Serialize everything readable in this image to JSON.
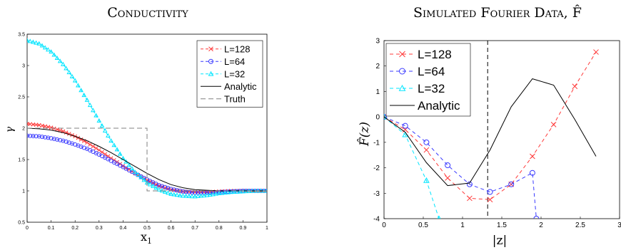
{
  "chart_data": [
    {
      "type": "line",
      "title": "Conductivity",
      "xlabel": "x",
      "xlabel_sub": "1",
      "ylabel": "γ",
      "xlim": [
        0,
        1
      ],
      "ylim": [
        0.5,
        3.5
      ],
      "xticks": [
        "0",
        "0.1",
        "0.2",
        "0.3",
        "0.4",
        "0.5",
        "0.6",
        "0.7",
        "0.8",
        "0.9",
        "1"
      ],
      "yticks": [
        "0.5",
        "1",
        "1.5",
        "2",
        "2.5",
        "3",
        "3.5"
      ],
      "legend_position": "top-right",
      "series": [
        {
          "name": "L=128",
          "color": "#ff3a3a",
          "dash": "4,3",
          "marker": "x",
          "x": [
            0,
            0.05,
            0.1,
            0.15,
            0.2,
            0.25,
            0.3,
            0.35,
            0.4,
            0.45,
            0.5,
            0.55,
            0.6,
            0.65,
            0.7,
            0.75,
            0.8,
            0.85,
            0.9,
            0.95,
            1
          ],
          "y": [
            2.07,
            2.05,
            2.01,
            1.95,
            1.87,
            1.77,
            1.65,
            1.52,
            1.4,
            1.28,
            1.17,
            1.08,
            1.02,
            0.99,
            0.98,
            0.98,
            0.99,
            1.0,
            1.0,
            1.0,
            1.0
          ]
        },
        {
          "name": "L=64",
          "color": "#3a3aff",
          "dash": "4,3",
          "marker": "o",
          "x": [
            0,
            0.05,
            0.1,
            0.15,
            0.2,
            0.25,
            0.3,
            0.35,
            0.4,
            0.45,
            0.5,
            0.55,
            0.6,
            0.65,
            0.7,
            0.75,
            0.8,
            0.85,
            0.9,
            0.95,
            1
          ],
          "y": [
            1.88,
            1.87,
            1.84,
            1.8,
            1.74,
            1.67,
            1.58,
            1.48,
            1.38,
            1.28,
            1.18,
            1.09,
            1.03,
            0.99,
            0.97,
            0.97,
            0.98,
            0.99,
            1.0,
            1.0,
            1.0
          ]
        },
        {
          "name": "L=32",
          "color": "#00e5ff",
          "dash": "4,3",
          "marker": "triangle",
          "x": [
            0,
            0.05,
            0.1,
            0.15,
            0.2,
            0.25,
            0.3,
            0.35,
            0.4,
            0.45,
            0.5,
            0.55,
            0.6,
            0.65,
            0.7,
            0.75,
            0.8,
            0.85,
            0.9,
            0.95,
            1
          ],
          "y": [
            3.4,
            3.35,
            3.22,
            3.02,
            2.76,
            2.45,
            2.12,
            1.8,
            1.52,
            1.3,
            1.13,
            1.02,
            0.95,
            0.92,
            0.91,
            0.93,
            0.96,
            0.98,
            0.99,
            1.0,
            1.0
          ]
        },
        {
          "name": "Analytic",
          "color": "#000000",
          "dash": "",
          "marker": "none",
          "x": [
            0,
            0.05,
            0.1,
            0.15,
            0.2,
            0.25,
            0.3,
            0.35,
            0.4,
            0.45,
            0.5,
            0.55,
            0.6,
            0.65,
            0.7,
            0.75,
            0.8,
            0.85,
            0.9,
            0.95,
            1
          ],
          "y": [
            2.0,
            1.99,
            1.97,
            1.93,
            1.87,
            1.8,
            1.71,
            1.61,
            1.5,
            1.39,
            1.28,
            1.18,
            1.1,
            1.05,
            1.02,
            1.01,
            1.0,
            1.0,
            1.0,
            1.0,
            1.0
          ]
        },
        {
          "name": "Truth",
          "color": "#808080",
          "dash": "7,4",
          "marker": "none",
          "x": [
            0,
            0.5,
            0.5,
            1
          ],
          "y": [
            2,
            2,
            1,
            1
          ]
        }
      ]
    },
    {
      "type": "line",
      "title": "Simulated Fourier Data, F̂",
      "xlabel": "|z|",
      "ylabel": "F̂(z)",
      "xlim": [
        0,
        3
      ],
      "ylim": [
        -4,
        3
      ],
      "xticks": [
        "0",
        "0.5",
        "1",
        "1.5",
        "2",
        "2.5",
        "3"
      ],
      "yticks": [
        "-4",
        "-3",
        "-2",
        "-1",
        "0",
        "1",
        "2",
        "3"
      ],
      "vline_x": 1.32,
      "legend_position": "top-left",
      "series": [
        {
          "name": "L=128",
          "color": "#ff3a3a",
          "dash": "5,4",
          "marker": "x",
          "x": [
            0,
            0.27,
            0.54,
            0.81,
            1.09,
            1.35,
            1.62,
            1.89,
            2.16,
            2.43,
            2.7
          ],
          "y": [
            0,
            -0.5,
            -1.3,
            -2.4,
            -3.2,
            -3.25,
            -2.65,
            -1.55,
            -0.3,
            1.2,
            2.55
          ]
        },
        {
          "name": "L=64",
          "color": "#3a3aff",
          "dash": "5,4",
          "marker": "o",
          "x": [
            0,
            0.27,
            0.54,
            0.81,
            1.09,
            1.35,
            1.62,
            1.89,
            1.94
          ],
          "y": [
            0,
            -0.35,
            -1.0,
            -1.9,
            -2.65,
            -2.95,
            -2.65,
            -2.2,
            -4.0
          ]
        },
        {
          "name": "L=32",
          "color": "#00e5ff",
          "dash": "5,4",
          "marker": "triangle",
          "x": [
            0,
            0.27,
            0.54,
            0.7
          ],
          "y": [
            0,
            -0.7,
            -2.5,
            -4.0
          ]
        },
        {
          "name": "Analytic",
          "color": "#000000",
          "dash": "",
          "marker": "none",
          "x": [
            0,
            0.27,
            0.54,
            0.81,
            1.09,
            1.35,
            1.62,
            1.89,
            2.16,
            2.43,
            2.7
          ],
          "y": [
            0,
            -0.6,
            -1.8,
            -2.7,
            -2.6,
            -1.3,
            0.4,
            1.5,
            1.25,
            -0.1,
            -1.55
          ]
        }
      ]
    }
  ]
}
